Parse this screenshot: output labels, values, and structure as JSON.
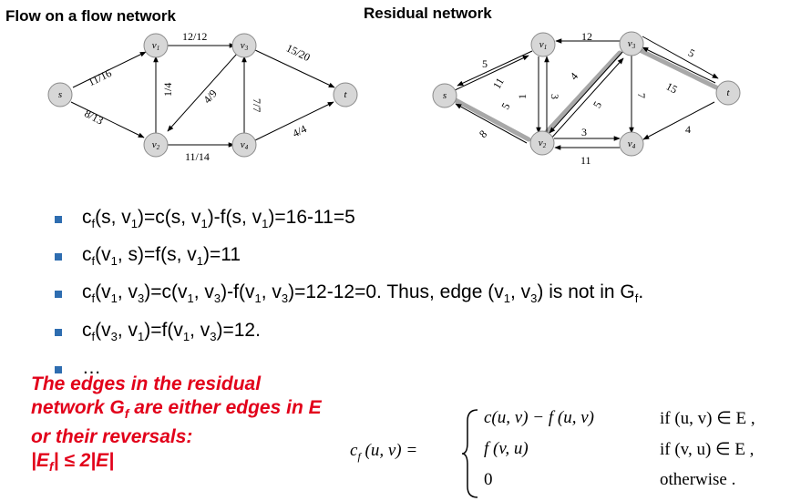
{
  "titles": {
    "left": "Flow on a flow network",
    "right": "Residual network"
  },
  "flow_network": {
    "nodes": [
      "s",
      "v1",
      "v2",
      "v3",
      "v4",
      "t"
    ],
    "edges": [
      {
        "from": "s",
        "to": "v1",
        "label": "11/16"
      },
      {
        "from": "s",
        "to": "v2",
        "label": "8/13"
      },
      {
        "from": "v1",
        "to": "v3",
        "label": "12/12"
      },
      {
        "from": "v2",
        "to": "v1",
        "label": "1/4"
      },
      {
        "from": "v3",
        "to": "v2",
        "label": "4/9"
      },
      {
        "from": "v4",
        "to": "v3",
        "label": "7/7"
      },
      {
        "from": "v2",
        "to": "v4",
        "label": "11/14"
      },
      {
        "from": "v3",
        "to": "t",
        "label": "15/20"
      },
      {
        "from": "v4",
        "to": "t",
        "label": "4/4"
      }
    ]
  },
  "residual_network": {
    "nodes": [
      "s",
      "v1",
      "v2",
      "v3",
      "v4",
      "t"
    ],
    "edge_labels": [
      "5",
      "11",
      "5",
      "8",
      "12",
      "1",
      "3",
      "4",
      "5",
      "3",
      "11",
      "7",
      "5",
      "15",
      "4"
    ]
  },
  "node_labels": {
    "s": "s",
    "v1_base": "v",
    "v1_sub": "1",
    "v2_base": "v",
    "v2_sub": "2",
    "v3_base": "v",
    "v3_sub": "3",
    "v4_base": "v",
    "v4_sub": "4",
    "t": "t"
  },
  "bullets": [
    {
      "parts": [
        "c",
        "f",
        "(s, v",
        "1",
        ")=c(s, v",
        "1",
        ")-f(s, v",
        "1",
        ")=16-11=5"
      ]
    },
    {
      "parts": [
        "c",
        "f",
        "(v",
        "1",
        ", s)=f(s, v",
        "1",
        ")=11"
      ]
    },
    {
      "parts": [
        "c",
        "f",
        "(v",
        "1",
        ", v",
        "3",
        ")=c(v",
        "1",
        ", v",
        "3",
        ")-f(v",
        "1",
        ", v",
        "3",
        ")=12-12=0. Thus, edge (v",
        "1",
        ", v",
        "3",
        ") is not in G",
        "f",
        "."
      ]
    },
    {
      "parts": [
        "c",
        "f",
        "(v",
        "3",
        ", v",
        "1",
        ")=f(v",
        "1",
        ", v",
        "3",
        ")=12."
      ]
    },
    {
      "parts": [
        "…"
      ]
    }
  ],
  "red_note": {
    "line1": "The edges in the residual",
    "line2_a": "network G",
    "line2_sub": "f",
    "line2_b": " are either edges in E",
    "line3": "or their reversals:",
    "line4_a": "|E",
    "line4_sub": "f",
    "line4_b": "| ≤ 2|E|"
  },
  "formula": {
    "lhs": "c",
    "lhs_sub": "f",
    "lhs_rest": " (u, v) =",
    "case1_expr": "c(u, v) − f (u, v)",
    "case1_cond": "if (u, v) ∈ E ,",
    "case2_expr": "f (v, u)",
    "case2_cond": "if (v, u) ∈ E ,",
    "case3_expr": "0",
    "case3_cond": "otherwise ."
  },
  "colors": {
    "node_fill": "#d7d7d7",
    "bullet": "#2e6db0",
    "note": "#e2001a",
    "augmenting_path": "#9a9a9a"
  }
}
